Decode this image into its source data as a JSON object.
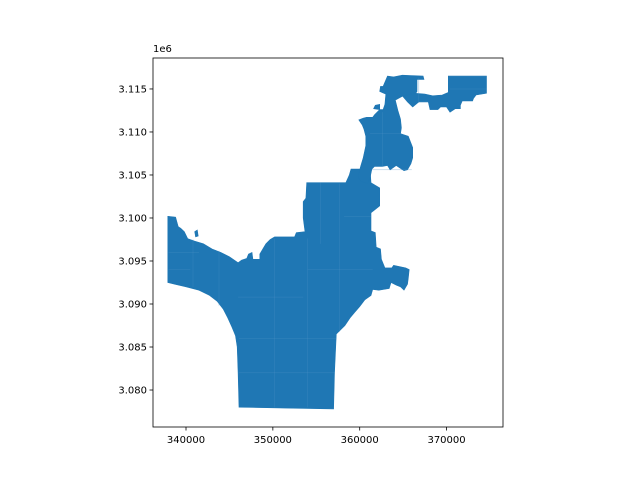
{
  "chart_data": {
    "type": "map",
    "offset_label": "1e6",
    "xlim": [
      336200,
      376500
    ],
    "ylim": [
      3075700,
      3118600
    ],
    "x_ticks": [
      {
        "value": 340000,
        "label": "340000"
      },
      {
        "value": 350000,
        "label": "350000"
      },
      {
        "value": 360000,
        "label": "360000"
      },
      {
        "value": 370000,
        "label": "370000"
      }
    ],
    "y_ticks": [
      {
        "value": 3080000,
        "label": "3.080"
      },
      {
        "value": 3085000,
        "label": "3.085"
      },
      {
        "value": 3090000,
        "label": "3.090"
      },
      {
        "value": 3095000,
        "label": "3.095"
      },
      {
        "value": 3100000,
        "label": "3.100"
      },
      {
        "value": 3105000,
        "label": "3.105"
      },
      {
        "value": 3110000,
        "label": "3.110"
      },
      {
        "value": 3115000,
        "label": "3.115"
      }
    ],
    "fill_color": "#1f77b4",
    "edge_color": "#4a8fc5",
    "polygons": [
      {
        "name": "main-region",
        "points": [
          [
            337900,
            3100200
          ],
          [
            338800,
            3100100
          ],
          [
            339100,
            3099000
          ],
          [
            339400,
            3098800
          ],
          [
            339800,
            3098400
          ],
          [
            340200,
            3097600
          ],
          [
            341000,
            3097300
          ],
          [
            342000,
            3097000
          ],
          [
            343000,
            3096400
          ],
          [
            344000,
            3096000
          ],
          [
            345000,
            3095500
          ],
          [
            346000,
            3094800
          ],
          [
            346400,
            3095100
          ],
          [
            347000,
            3095300
          ],
          [
            347200,
            3095800
          ],
          [
            347600,
            3096000
          ],
          [
            347700,
            3095200
          ],
          [
            348500,
            3095200
          ],
          [
            348500,
            3095800
          ],
          [
            348900,
            3096500
          ],
          [
            349200,
            3097000
          ],
          [
            349700,
            3097500
          ],
          [
            350200,
            3097800
          ],
          [
            352500,
            3097800
          ],
          [
            352700,
            3098300
          ],
          [
            353700,
            3098400
          ],
          [
            353500,
            3100000
          ],
          [
            353500,
            3101900
          ],
          [
            353800,
            3102300
          ],
          [
            353900,
            3104100
          ],
          [
            358400,
            3104100
          ],
          [
            358800,
            3105000
          ],
          [
            359000,
            3105700
          ],
          [
            361200,
            3105700
          ],
          [
            361300,
            3104100
          ],
          [
            362300,
            3103500
          ],
          [
            362300,
            3101400
          ],
          [
            361800,
            3101000
          ],
          [
            361300,
            3100600
          ],
          [
            361300,
            3098500
          ],
          [
            361800,
            3098300
          ],
          [
            361900,
            3096600
          ],
          [
            362400,
            3096400
          ],
          [
            362500,
            3095200
          ],
          [
            362900,
            3094200
          ],
          [
            363700,
            3094200
          ],
          [
            363900,
            3094500
          ],
          [
            365300,
            3094200
          ],
          [
            365700,
            3094000
          ],
          [
            365600,
            3093000
          ],
          [
            365500,
            3092300
          ],
          [
            365100,
            3091600
          ],
          [
            364700,
            3092000
          ],
          [
            364200,
            3092200
          ],
          [
            363600,
            3092500
          ],
          [
            363400,
            3091800
          ],
          [
            362200,
            3091600
          ],
          [
            361500,
            3091700
          ],
          [
            361300,
            3091000
          ],
          [
            360600,
            3090500
          ],
          [
            360000,
            3089700
          ],
          [
            359400,
            3089000
          ],
          [
            358900,
            3088400
          ],
          [
            358300,
            3087500
          ],
          [
            357800,
            3087000
          ],
          [
            357300,
            3086500
          ],
          [
            357100,
            3082000
          ],
          [
            357000,
            3077800
          ],
          [
            351500,
            3077900
          ],
          [
            346100,
            3078000
          ],
          [
            346000,
            3082000
          ],
          [
            345900,
            3085000
          ],
          [
            345700,
            3086300
          ],
          [
            345300,
            3087300
          ],
          [
            344800,
            3088400
          ],
          [
            344300,
            3089400
          ],
          [
            343600,
            3090300
          ],
          [
            342700,
            3091000
          ],
          [
            341500,
            3091600
          ],
          [
            340000,
            3092000
          ],
          [
            338700,
            3092300
          ],
          [
            337900,
            3092500
          ]
        ]
      },
      {
        "name": "north-corridor",
        "points": [
          [
            359800,
            3104800
          ],
          [
            360100,
            3104300
          ],
          [
            360900,
            3104000
          ],
          [
            361200,
            3104700
          ],
          [
            361400,
            3105700
          ],
          [
            361700,
            3106000
          ],
          [
            362600,
            3106000
          ],
          [
            363200,
            3106100
          ],
          [
            363500,
            3105600
          ],
          [
            364200,
            3106100
          ],
          [
            365100,
            3105500
          ],
          [
            365500,
            3105600
          ],
          [
            365900,
            3106300
          ],
          [
            366100,
            3107000
          ],
          [
            366100,
            3108200
          ],
          [
            365600,
            3109500
          ],
          [
            364700,
            3109800
          ],
          [
            364800,
            3110500
          ],
          [
            364700,
            3111500
          ],
          [
            364400,
            3112500
          ],
          [
            364100,
            3113700
          ],
          [
            365000,
            3114200
          ],
          [
            366300,
            3114300
          ],
          [
            366600,
            3114700
          ],
          [
            366600,
            3116100
          ],
          [
            367400,
            3116100
          ],
          [
            367300,
            3116500
          ],
          [
            364900,
            3116600
          ],
          [
            363900,
            3116400
          ],
          [
            363200,
            3116500
          ],
          [
            362700,
            3115300
          ],
          [
            362400,
            3115300
          ],
          [
            362300,
            3114700
          ],
          [
            363000,
            3114400
          ],
          [
            362900,
            3113200
          ],
          [
            362700,
            3112600
          ],
          [
            362300,
            3112600
          ],
          [
            361700,
            3112000
          ],
          [
            361500,
            3111700
          ],
          [
            360800,
            3111700
          ],
          [
            360400,
            3111600
          ],
          [
            359900,
            3111400
          ],
          [
            360300,
            3110800
          ],
          [
            360500,
            3110300
          ],
          [
            360700,
            3109500
          ],
          [
            360700,
            3108400
          ],
          [
            360400,
            3107000
          ],
          [
            360100,
            3106000
          ]
        ]
      },
      {
        "name": "east-lobe",
        "points": [
          [
            364900,
            3114200
          ],
          [
            365500,
            3113500
          ],
          [
            366100,
            3112900
          ],
          [
            366800,
            3113500
          ],
          [
            367300,
            3113500
          ],
          [
            367900,
            3113500
          ],
          [
            368100,
            3112600
          ],
          [
            369000,
            3112600
          ],
          [
            369300,
            3112900
          ],
          [
            370000,
            3112900
          ],
          [
            370400,
            3112300
          ],
          [
            371000,
            3112700
          ],
          [
            371600,
            3112700
          ],
          [
            371600,
            3113100
          ],
          [
            371800,
            3113600
          ],
          [
            373000,
            3113600
          ],
          [
            373100,
            3113900
          ],
          [
            373400,
            3114300
          ],
          [
            374600,
            3114500
          ],
          [
            374600,
            3116500
          ],
          [
            370200,
            3116500
          ],
          [
            370200,
            3114600
          ],
          [
            369500,
            3114300
          ],
          [
            368400,
            3114200
          ],
          [
            367500,
            3114400
          ],
          [
            366400,
            3114500
          ]
        ]
      },
      {
        "name": "west-islet",
        "points": [
          [
            341100,
            3097800
          ],
          [
            341400,
            3097900
          ],
          [
            341300,
            3098600
          ],
          [
            341000,
            3098400
          ]
        ]
      },
      {
        "name": "northwest-islet",
        "points": [
          [
            361600,
            3112700
          ],
          [
            362300,
            3112600
          ],
          [
            362300,
            3113200
          ],
          [
            361800,
            3113100
          ]
        ]
      }
    ],
    "lines": [
      [
        [
          338000,
          3096000
        ],
        [
          341500,
          3096000
        ]
      ],
      [
        [
          338000,
          3094000
        ],
        [
          340500,
          3094000
        ]
      ],
      [
        [
          340800,
          3097500
        ],
        [
          340800,
          3092000
        ]
      ],
      [
        [
          343800,
          3096200
        ],
        [
          343800,
          3089800
        ]
      ],
      [
        [
          346000,
          3090800
        ],
        [
          353500,
          3090800
        ]
      ],
      [
        [
          350200,
          3097600
        ],
        [
          350200,
          3078000
        ]
      ],
      [
        [
          354000,
          3097600
        ],
        [
          354000,
          3078000
        ]
      ],
      [
        [
          346100,
          3086000
        ],
        [
          357300,
          3086000
        ]
      ],
      [
        [
          346100,
          3082000
        ],
        [
          357100,
          3082000
        ]
      ],
      [
        [
          354000,
          3094000
        ],
        [
          361500,
          3094000
        ]
      ],
      [
        [
          357700,
          3104000
        ],
        [
          357700,
          3086800
        ]
      ],
      [
        [
          358200,
          3100200
        ],
        [
          361300,
          3100200
        ]
      ],
      [
        [
          355500,
          3104100
        ],
        [
          355500,
          3097000
        ]
      ],
      [
        [
          361400,
          3105600
        ],
        [
          366000,
          3105600
        ]
      ],
      [
        [
          361200,
          3109800
        ],
        [
          364800,
          3109800
        ]
      ],
      [
        [
          362600,
          3112300
        ],
        [
          362600,
          3106000
        ]
      ],
      [
        [
          366800,
          3113400
        ],
        [
          366800,
          3116300
        ]
      ],
      [
        [
          370400,
          3115000
        ],
        [
          374600,
          3115000
        ]
      ]
    ]
  }
}
